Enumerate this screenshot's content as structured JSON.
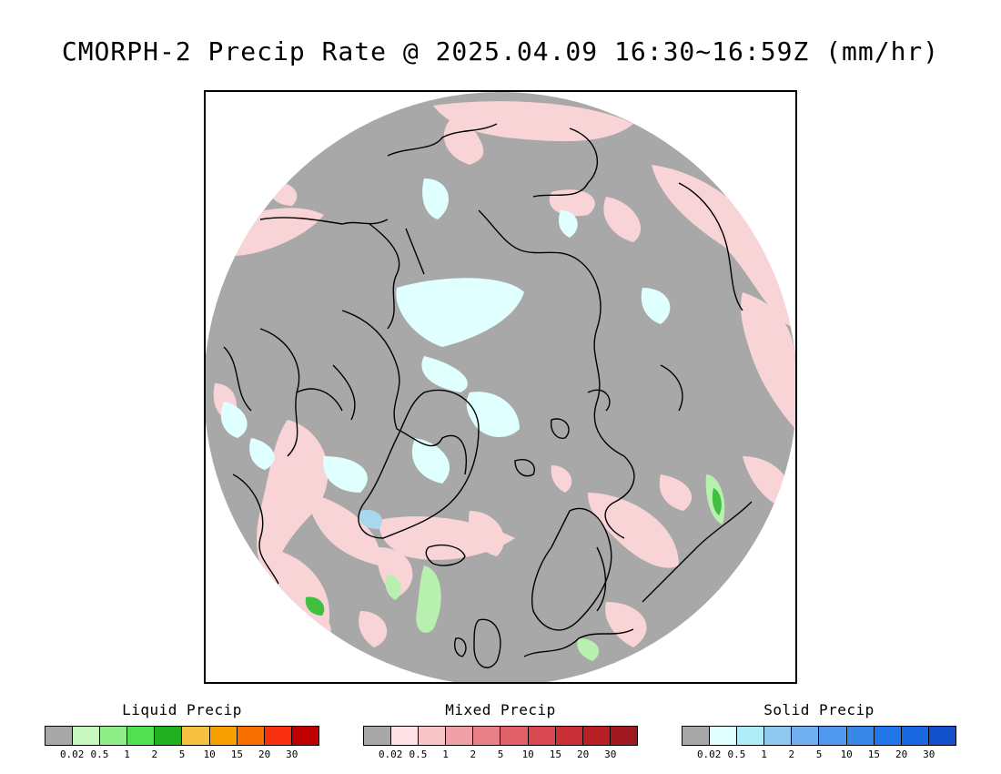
{
  "title": "CMORPH-2 Precip Rate @ 2025.04.09 16:30~16:59Z (mm/hr)",
  "map": {
    "projection": "north polar stereographic",
    "background_gray": "#a8a8a8",
    "coastline_color": "#000000"
  },
  "legends": [
    {
      "id": "liquid",
      "title": "Liquid Precip",
      "colors": [
        "#a8a8a8",
        "#c8f8c0",
        "#90ee88",
        "#50e050",
        "#20b020",
        "#f8c040",
        "#f8a000",
        "#f87000",
        "#f83010",
        "#c00000"
      ],
      "ticks": [
        "0.02",
        "0.5",
        "1",
        "2",
        "5",
        "10",
        "15",
        "20",
        "30"
      ]
    },
    {
      "id": "mixed",
      "title": "Mixed Precip",
      "colors": [
        "#a8a8a8",
        "#ffe0e4",
        "#f8c4c8",
        "#f0a0a8",
        "#e88088",
        "#e06068",
        "#d84850",
        "#c83038",
        "#b82028",
        "#a01820"
      ],
      "ticks": [
        "0.02",
        "0.5",
        "1",
        "2",
        "5",
        "10",
        "15",
        "20",
        "30"
      ]
    },
    {
      "id": "solid",
      "title": "Solid Precip",
      "colors": [
        "#a8a8a8",
        "#e0ffff",
        "#b0ecf8",
        "#90c8f0",
        "#70b0f0",
        "#5098f0",
        "#3888e8",
        "#2078e8",
        "#1868e0",
        "#1050c8"
      ],
      "ticks": [
        "0.02",
        "0.5",
        "1",
        "2",
        "5",
        "10",
        "15",
        "20",
        "30"
      ]
    }
  ]
}
